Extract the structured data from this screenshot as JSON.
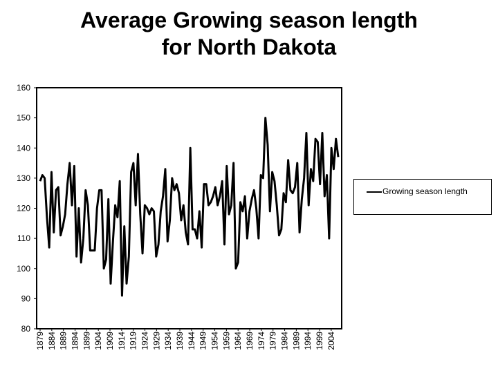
{
  "title_line1": "Average Growing season length",
  "title_line2": "for North Dakota",
  "chart_data": {
    "type": "line",
    "title": "Average Growing season length for North Dakota",
    "xlabel": "",
    "ylabel": "",
    "ylim": [
      80,
      160
    ],
    "yticks": [
      80,
      90,
      100,
      110,
      120,
      130,
      140,
      150,
      160
    ],
    "x_tick_labels": [
      "1879",
      "1884",
      "1889",
      "1894",
      "1899",
      "1904",
      "1909",
      "1914",
      "1919",
      "1924",
      "1929",
      "1934",
      "1939",
      "1944",
      "1949",
      "1954",
      "1959",
      "1964",
      "1969",
      "1974",
      "1979",
      "1984",
      "1989",
      "1994",
      "1999",
      "2004"
    ],
    "x_start": 1879,
    "x_end": 2007,
    "grid": false,
    "legend_position": "right",
    "series": [
      {
        "name": "Growing season length",
        "color": "#000000",
        "values": [
          129,
          131,
          130,
          117,
          107,
          132,
          112,
          126,
          127,
          111,
          114,
          118,
          128,
          135,
          121,
          134,
          104,
          120,
          102,
          110,
          126,
          121,
          106,
          106,
          106,
          120,
          126,
          126,
          100,
          103,
          123,
          95,
          109,
          121,
          117,
          129,
          91,
          114,
          95,
          104,
          132,
          135,
          121,
          138,
          118,
          105,
          121,
          120,
          118,
          120,
          119,
          104,
          108,
          119,
          124,
          133,
          109,
          116,
          130,
          126,
          128,
          125,
          116,
          121,
          112,
          108,
          140,
          113,
          113,
          110,
          119,
          107,
          128,
          128,
          121,
          122,
          124,
          127,
          121,
          124,
          129,
          108,
          134,
          118,
          121,
          135,
          100,
          102,
          122,
          119,
          124,
          110,
          119,
          123,
          126,
          120,
          110,
          131,
          130,
          150,
          141,
          119,
          132,
          129,
          121,
          111,
          113,
          125,
          122,
          136,
          126,
          125,
          127,
          135,
          112,
          123,
          130,
          145,
          121,
          133,
          129,
          143,
          142,
          128,
          145,
          124,
          131,
          110,
          140,
          133,
          143,
          137
        ]
      }
    ]
  },
  "legend": {
    "label": "Growing season length"
  }
}
